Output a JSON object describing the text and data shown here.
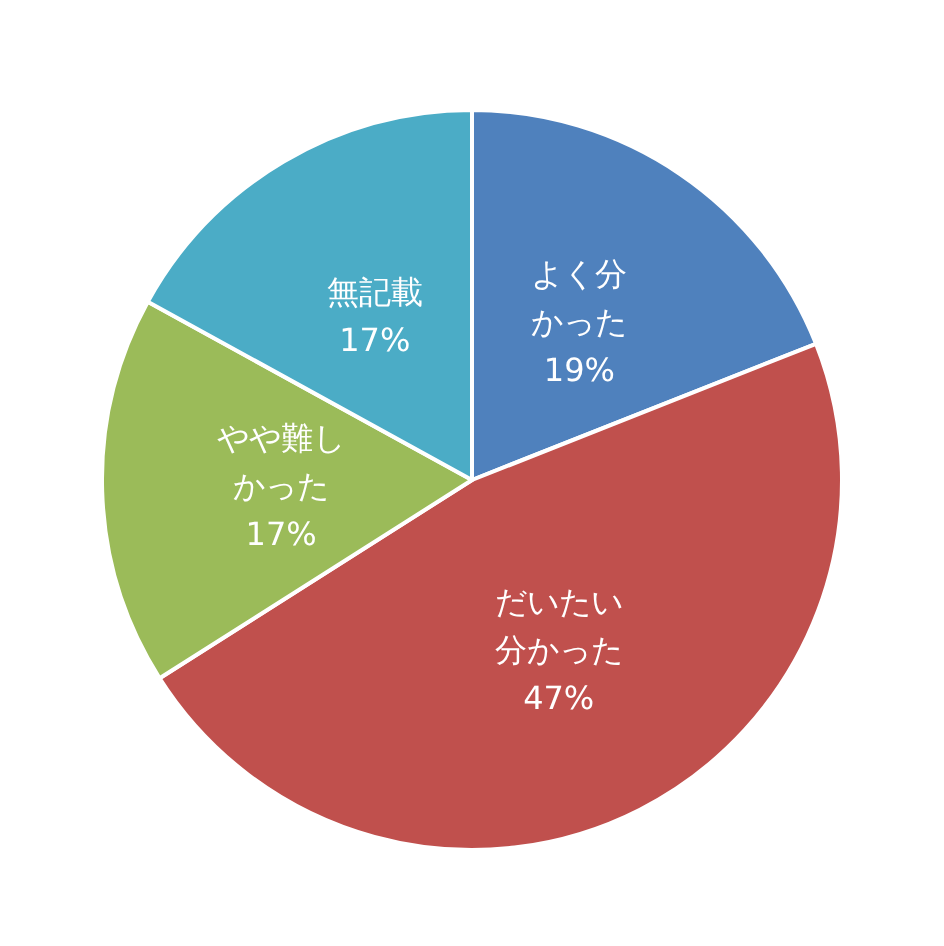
{
  "chart_data": {
    "type": "pie",
    "categories": [
      "よく分かった",
      "だいたい分かった",
      "やや難しかった",
      "無記載"
    ],
    "values": [
      19,
      47,
      17,
      17
    ],
    "value_labels": [
      "19%",
      "47%",
      "17%",
      "17%"
    ],
    "colors": [
      "#4f81bd",
      "#c0504d",
      "#9bbb59",
      "#4bacc6"
    ]
  }
}
